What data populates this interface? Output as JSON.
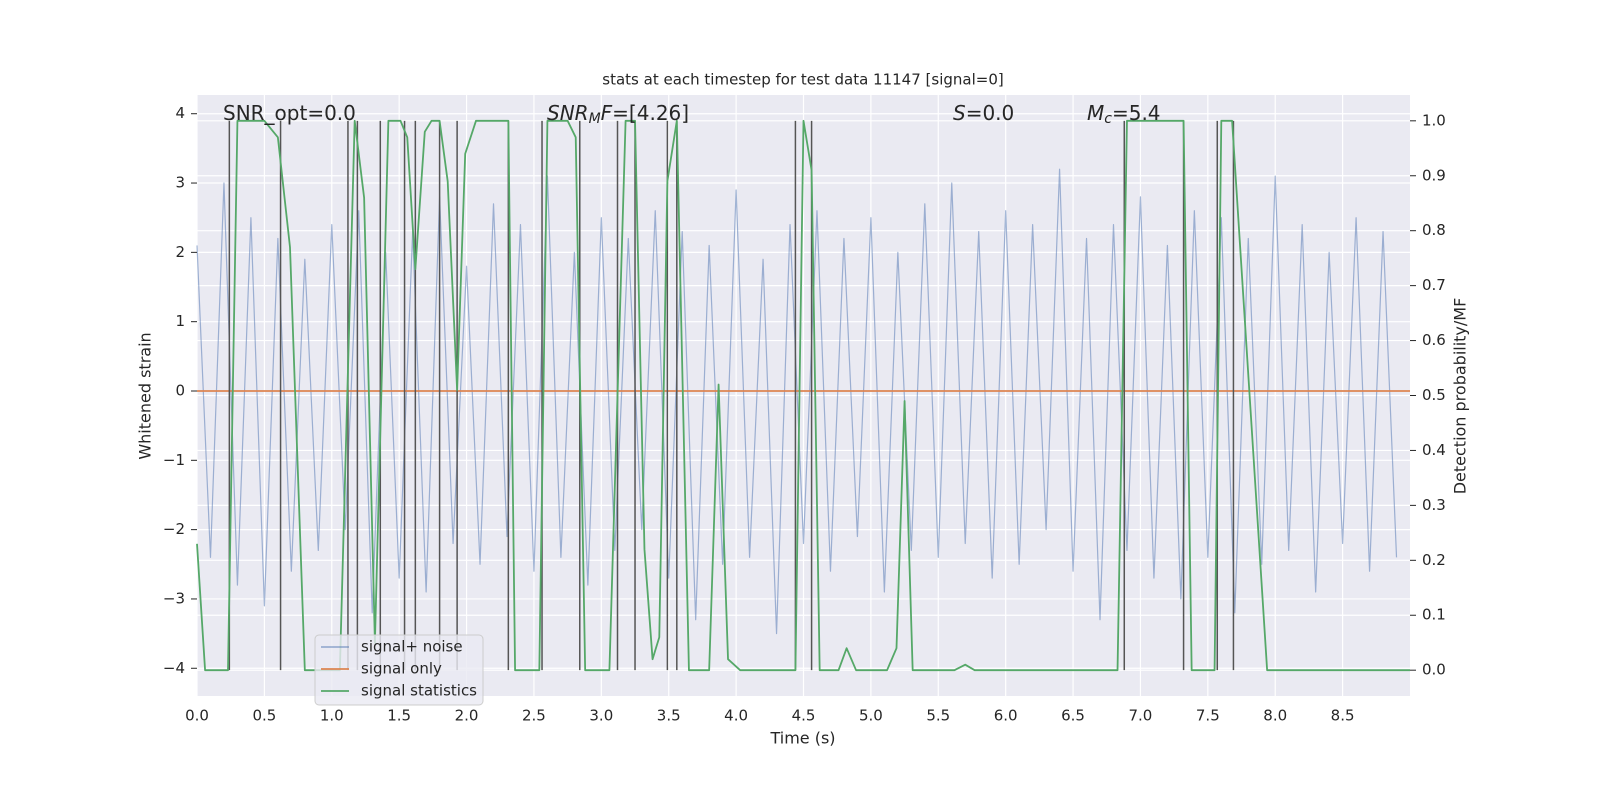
{
  "chart_data": {
    "type": "line",
    "title": "stats at each timestep for test data 11147 [signal=0]",
    "xlabel": "Time (s)",
    "ylabel": "Whitened strain",
    "y2label": "Detection probability/MF",
    "annotations": [
      [
        "SNR_opt=0.0"
      ],
      [
        "SNR",
        "M",
        "F",
        "=[4.26]"
      ],
      [
        "S",
        "=0.0"
      ],
      [
        "M",
        "c",
        "=5.4"
      ]
    ],
    "xlim": [
      0,
      9.0
    ],
    "ylim": [
      -4.4,
      4.27
    ],
    "y2lim": [
      -0.047,
      1.047
    ],
    "xticks": [
      {
        "value": 0,
        "label": "0.0"
      },
      0.5,
      {
        "value": 1,
        "label": "1.0"
      },
      1.5,
      {
        "value": 2,
        "label": "2.0"
      },
      2.5,
      {
        "value": 3,
        "label": "3.0"
      },
      3.5,
      {
        "value": 4,
        "label": "4.0"
      },
      4.5,
      {
        "value": 5,
        "label": "5.0"
      },
      5.5,
      {
        "value": 6,
        "label": "6.0"
      },
      6.5,
      {
        "value": 7,
        "label": "7.0"
      },
      7.5,
      {
        "value": 8,
        "label": "8.0"
      },
      8.5
    ],
    "yticks": [
      {
        "value": -4,
        "label": "−4"
      },
      {
        "value": -3,
        "label": "−3"
      },
      {
        "value": -2,
        "label": "−2"
      },
      {
        "value": -1,
        "label": "−1"
      },
      0,
      1,
      2,
      3,
      4
    ],
    "y2ticks": [
      {
        "value": 0,
        "label": "0.0"
      },
      0.1,
      0.2,
      0.3,
      0.4,
      0.5,
      0.6,
      0.7,
      0.8,
      0.9,
      {
        "value": 1,
        "label": "1.0"
      }
    ],
    "grid": true,
    "legend": "lower left",
    "vlines": [
      0.24,
      0.62,
      1.12,
      1.19,
      1.36,
      1.54,
      1.62,
      1.8,
      1.93,
      2.31,
      2.56,
      2.84,
      3.12,
      3.25,
      3.49,
      3.56,
      4.44,
      4.56,
      6.88,
      7.32,
      7.57,
      7.69
    ],
    "vline_color": "#555555",
    "series": [
      {
        "name": "signal+ noise",
        "color": "#4c72b0",
        "x": [
          0.0,
          0.1,
          0.2,
          0.3,
          0.4,
          0.5,
          0.6,
          0.7,
          0.8,
          0.9,
          1.0,
          1.1,
          1.2,
          1.3,
          1.4,
          1.5,
          1.6,
          1.7,
          1.8,
          1.9,
          2.0,
          2.1,
          2.2,
          2.3,
          2.4,
          2.5,
          2.6,
          2.7,
          2.8,
          2.9,
          3.0,
          3.1,
          3.2,
          3.3,
          3.4,
          3.5,
          3.6,
          3.7,
          3.8,
          3.9,
          4.0,
          4.1,
          4.2,
          4.3,
          4.4,
          4.5,
          4.6,
          4.7,
          4.8,
          4.9,
          5.0,
          5.1,
          5.2,
          5.3,
          5.4,
          5.5,
          5.6,
          5.7,
          5.8,
          5.9,
          6.0,
          6.1,
          6.2,
          6.3,
          6.4,
          6.5,
          6.6,
          6.7,
          6.8,
          6.9,
          7.0,
          7.1,
          7.2,
          7.3,
          7.4,
          7.5,
          7.6,
          7.7,
          7.8,
          7.9,
          8.0,
          8.1,
          8.2,
          8.3,
          8.4,
          8.5,
          8.6,
          8.7,
          8.8,
          8.9
        ],
        "values": [
          2.1,
          -2.4,
          3.0,
          -2.8,
          2.5,
          -3.1,
          2.2,
          -2.6,
          1.9,
          -2.3,
          2.4,
          -2.0,
          2.6,
          -3.2,
          2.0,
          -2.7,
          2.3,
          -2.9,
          2.8,
          -2.2,
          1.8,
          -2.5,
          2.7,
          -2.1,
          2.4,
          -2.6,
          3.1,
          -2.4,
          2.0,
          -2.8,
          2.5,
          -2.3,
          2.2,
          -2.0,
          2.6,
          -2.7,
          2.3,
          -3.3,
          2.1,
          -2.5,
          2.9,
          -2.4,
          1.9,
          -3.5,
          2.4,
          -2.2,
          2.6,
          -2.6,
          2.2,
          -2.1,
          2.5,
          -2.9,
          2.0,
          -2.3,
          2.7,
          -2.4,
          3.0,
          -2.2,
          2.3,
          -2.7,
          2.6,
          -2.5,
          2.4,
          -2.0,
          3.2,
          -2.6,
          2.2,
          -3.3,
          2.4,
          -2.3,
          2.8,
          -2.7,
          2.1,
          -3.0,
          2.6,
          -2.4,
          2.5,
          -3.2,
          2.2,
          -2.5,
          3.1,
          -2.3,
          2.4,
          -2.9,
          2.0,
          -2.2,
          2.5,
          -2.6,
          2.3,
          -2.4
        ]
      },
      {
        "name": "signal only",
        "color": "#dd8452",
        "x": [
          0.0,
          9.0
        ],
        "values": [
          0,
          0
        ]
      },
      {
        "name": "signal statistics",
        "color": "#55a868",
        "axis": "y2",
        "x": [
          0.0,
          0.06,
          0.23,
          0.3,
          0.5,
          0.6,
          0.69,
          0.8,
          1.06,
          1.17,
          1.24,
          1.32,
          1.42,
          1.51,
          1.56,
          1.62,
          1.69,
          1.74,
          1.8,
          1.86,
          1.93,
          1.99,
          2.07,
          2.31,
          2.36,
          2.54,
          2.6,
          2.75,
          2.81,
          2.88,
          3.06,
          3.18,
          3.25,
          3.32,
          3.38,
          3.43,
          3.49,
          3.56,
          3.65,
          3.8,
          3.87,
          3.94,
          4.03,
          4.44,
          4.5,
          4.56,
          4.62,
          4.76,
          4.82,
          4.89,
          5.12,
          5.19,
          5.25,
          5.31,
          5.62,
          5.7,
          5.77,
          6.83,
          6.9,
          7.32,
          7.38,
          7.55,
          7.6,
          7.68,
          7.94,
          9.0
        ],
        "values": [
          0.23,
          0,
          0,
          1,
          1,
          0.97,
          0.77,
          0,
          0,
          1,
          0.86,
          0.05,
          1,
          1,
          0.97,
          0.73,
          0.98,
          1,
          1,
          0.89,
          0.51,
          0.94,
          1,
          1,
          0,
          0,
          1,
          1,
          0.97,
          0,
          0,
          1,
          1,
          0.22,
          0.02,
          0.06,
          0.89,
          1,
          0,
          0,
          0.52,
          0.02,
          0,
          0,
          1,
          0.91,
          0,
          0,
          0.04,
          0,
          0,
          0.04,
          0.49,
          0,
          0,
          0.01,
          0,
          0,
          1,
          1,
          0,
          0,
          1,
          1,
          0,
          0
        ]
      }
    ]
  }
}
